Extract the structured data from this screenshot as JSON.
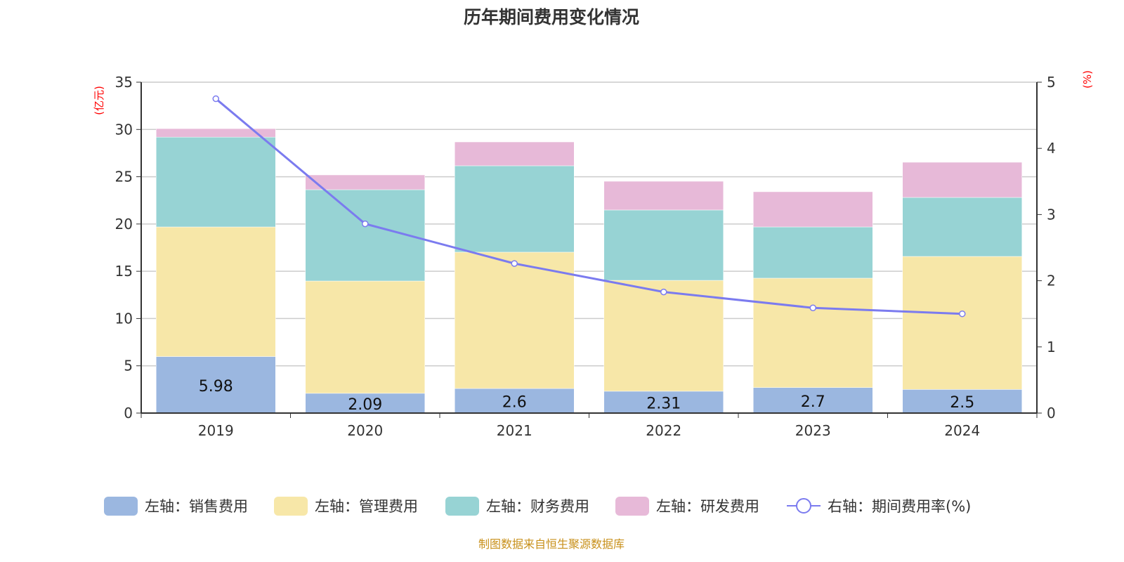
{
  "chart_data": {
    "type": "bar",
    "title": "历年期间费用变化情况",
    "categories": [
      "2019",
      "2020",
      "2021",
      "2022",
      "2023",
      "2024"
    ],
    "left_axis": {
      "label": "(亿元)",
      "ylim": [
        0,
        35
      ],
      "ticks": [
        0,
        5,
        10,
        15,
        20,
        25,
        30,
        35
      ]
    },
    "right_axis": {
      "label": "(%)",
      "ylim": [
        0,
        5
      ],
      "ticks": [
        0,
        1,
        2,
        3,
        4,
        5
      ]
    },
    "grid": true,
    "legend_position": "bottom",
    "series": [
      {
        "name": "左轴：销售费用",
        "type": "bar",
        "axis": "left",
        "color": "#9bb7e0",
        "values": [
          5.98,
          2.09,
          2.6,
          2.31,
          2.7,
          2.5
        ],
        "labels": [
          "5.98",
          "2.09",
          "2.6",
          "2.31",
          "2.7",
          "2.5"
        ]
      },
      {
        "name": "左轴：管理费用",
        "type": "bar",
        "axis": "left",
        "color": "#f7e7a8",
        "values": [
          13.71,
          11.88,
          14.42,
          11.73,
          11.57,
          14.07
        ]
      },
      {
        "name": "左轴：财务费用",
        "type": "bar",
        "axis": "left",
        "color": "#97d3d4",
        "values": [
          9.5,
          9.66,
          9.14,
          7.44,
          5.42,
          6.24
        ]
      },
      {
        "name": "左轴：研发费用",
        "type": "bar",
        "axis": "left",
        "color": "#e7b9d8",
        "values": [
          0.9,
          1.56,
          2.52,
          3.04,
          3.72,
          3.72
        ]
      },
      {
        "name": "右轴：期间费用率(%)",
        "type": "line",
        "axis": "right",
        "color": "#7b7bef",
        "values": [
          4.75,
          2.86,
          2.26,
          1.83,
          1.59,
          1.5
        ]
      }
    ],
    "source": "制图数据来自恒生聚源数据库"
  }
}
